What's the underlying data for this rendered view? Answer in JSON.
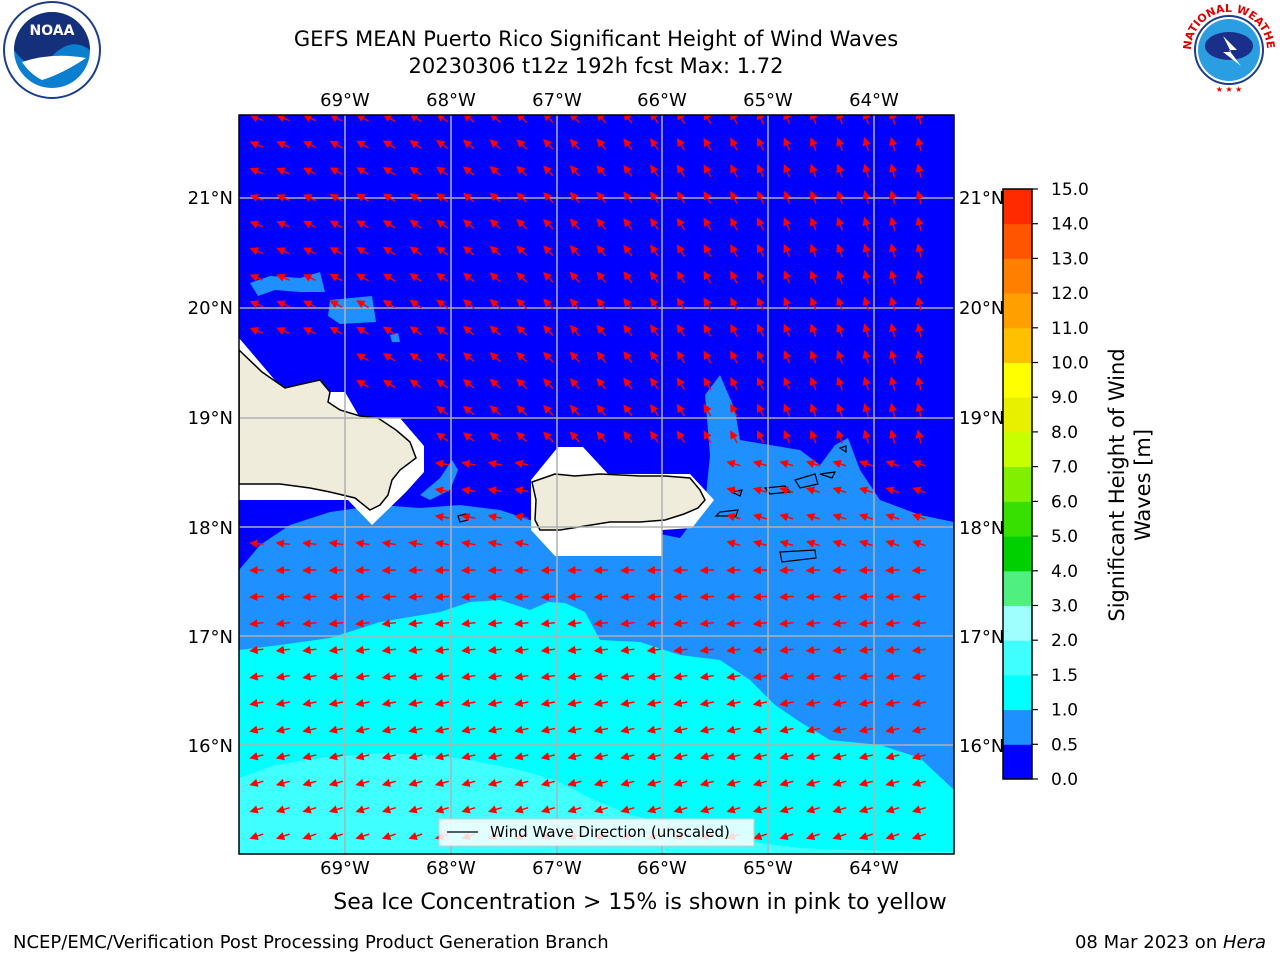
{
  "header": {
    "title_line1": "GEFS MEAN Puerto Rico Significant Height of Wind Waves",
    "title_line2": "20230306 t12z 192h fcst   Max: 1.72"
  },
  "map": {
    "lon_labels": [
      "69°W",
      "68°W",
      "67°W",
      "66°W",
      "65°W",
      "64°W"
    ],
    "lat_labels": [
      "21°N",
      "20°N",
      "19°N",
      "18°N",
      "17°N",
      "16°N"
    ],
    "legend_label": "Wind Wave Direction (unscaled)",
    "vector_color": "#ff0000",
    "land_color": "#efecdc"
  },
  "colorbar": {
    "label_line1": "Significant Height of Wind",
    "label_line2": "Waves [m]",
    "ticks": [
      "15.0",
      "14.0",
      "13.0",
      "12.0",
      "11.0",
      "10.0",
      "9.0",
      "8.0",
      "7.0",
      "6.0",
      "5.0",
      "4.0",
      "3.0",
      "2.0",
      "1.5",
      "1.0",
      "0.5",
      "0.0"
    ],
    "colors": [
      "#0000ff",
      "#1e90ff",
      "#00ffff",
      "#40ffff",
      "#9fffff",
      "#50f080",
      "#00d000",
      "#38e000",
      "#80f000",
      "#c8ff00",
      "#e8f000",
      "#ffff00",
      "#ffc000",
      "#ffa000",
      "#ff8000",
      "#ff5500",
      "#ff2a00",
      "#ff0000"
    ]
  },
  "note": "Sea Ice Concentration > 15% is shown in pink to yellow",
  "footer": {
    "left": "NCEP/EMC/Verification Post Processing Product Generation Branch",
    "right_date": "08 Mar 2023 on ",
    "right_host": "Hera"
  },
  "logos": {
    "noaa_text": "NOAA",
    "nws_text": "NATIONAL WEATHER SERVICE"
  }
}
